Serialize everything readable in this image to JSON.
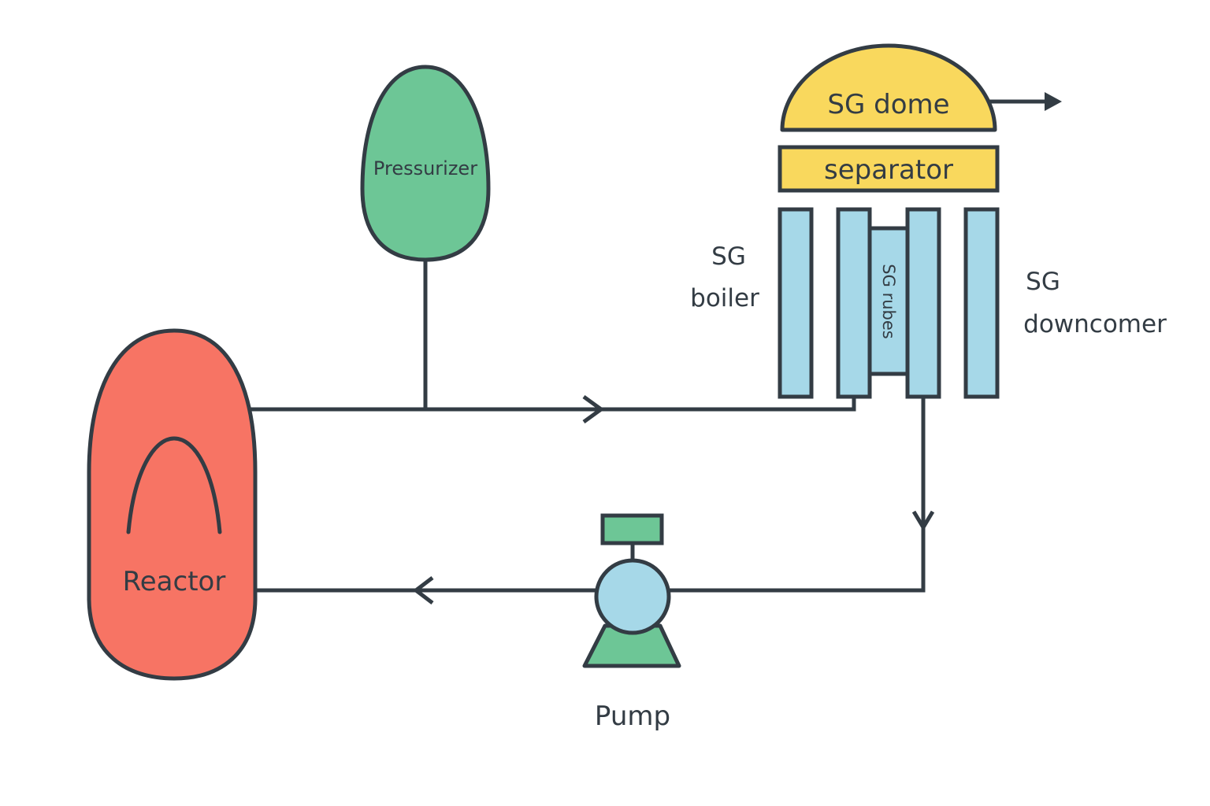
{
  "colors": {
    "outline": "#333c44",
    "reactor": "#f77464",
    "pressurizer": "#6dc696",
    "steam_generator_body": "#f9d85d",
    "tubes": "#a6d8e8",
    "pump_body": "#a6d8e8",
    "pump_motor": "#6dc696",
    "pump_base": "#6dc696",
    "background": "#ffffff"
  },
  "components": {
    "reactor": {
      "label": "Reactor"
    },
    "pressurizer": {
      "label": "Pressurizer"
    },
    "sg_dome": {
      "label": "SG dome"
    },
    "separator": {
      "label": "separator"
    },
    "sg_tubes": {
      "label": "SG rubes"
    },
    "sg_boiler": {
      "label_line1": "SG",
      "label_line2": "boiler"
    },
    "sg_downcomer": {
      "label_line1": "SG",
      "label_line2": "downcomer"
    },
    "pump": {
      "label": "Pump"
    }
  },
  "flow": {
    "hot_leg_direction": "right",
    "cold_leg_direction": "left",
    "sg_outlet_direction": "down",
    "steam_outlet_direction": "right"
  }
}
